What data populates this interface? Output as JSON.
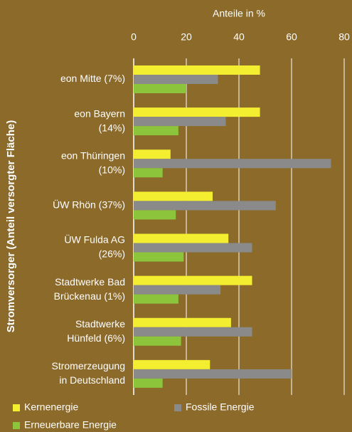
{
  "chart_data": {
    "type": "hbar",
    "xlabel": "Anteile in %",
    "ylabel": "Stromversorger (Anteil versorgter Fläche)",
    "categories": [
      [
        "eon Mitte (7%)"
      ],
      [
        "eon Bayern",
        "(14%)"
      ],
      [
        "eon Thüringen",
        "(10%)"
      ],
      [
        "ÜW Rhön (37%)"
      ],
      [
        "ÜW Fulda AG",
        "(26%)"
      ],
      [
        "Stadtwerke Bad",
        "Brückenau (1%)"
      ],
      [
        "Stadtwerke",
        "Hünfeld (6%)"
      ],
      [
        "Stromerzeugung",
        "in Deutschland"
      ]
    ],
    "series": [
      {
        "name": "Kernenergie",
        "color": "#f4ee30",
        "values": [
          48,
          48,
          14,
          30,
          36,
          45,
          37,
          29
        ]
      },
      {
        "name": "Fossile Energie",
        "color": "#8a8a8a",
        "values": [
          32,
          35,
          75,
          54,
          45,
          33,
          45,
          60
        ]
      },
      {
        "name": "Erneuerbare Energie",
        "color": "#8cc43c",
        "values": [
          20,
          17,
          11,
          16,
          19,
          17,
          18,
          11
        ]
      }
    ],
    "xlim": [
      0,
      80
    ],
    "xticks": [
      0,
      20,
      40,
      60,
      80
    ],
    "grid": true
  }
}
